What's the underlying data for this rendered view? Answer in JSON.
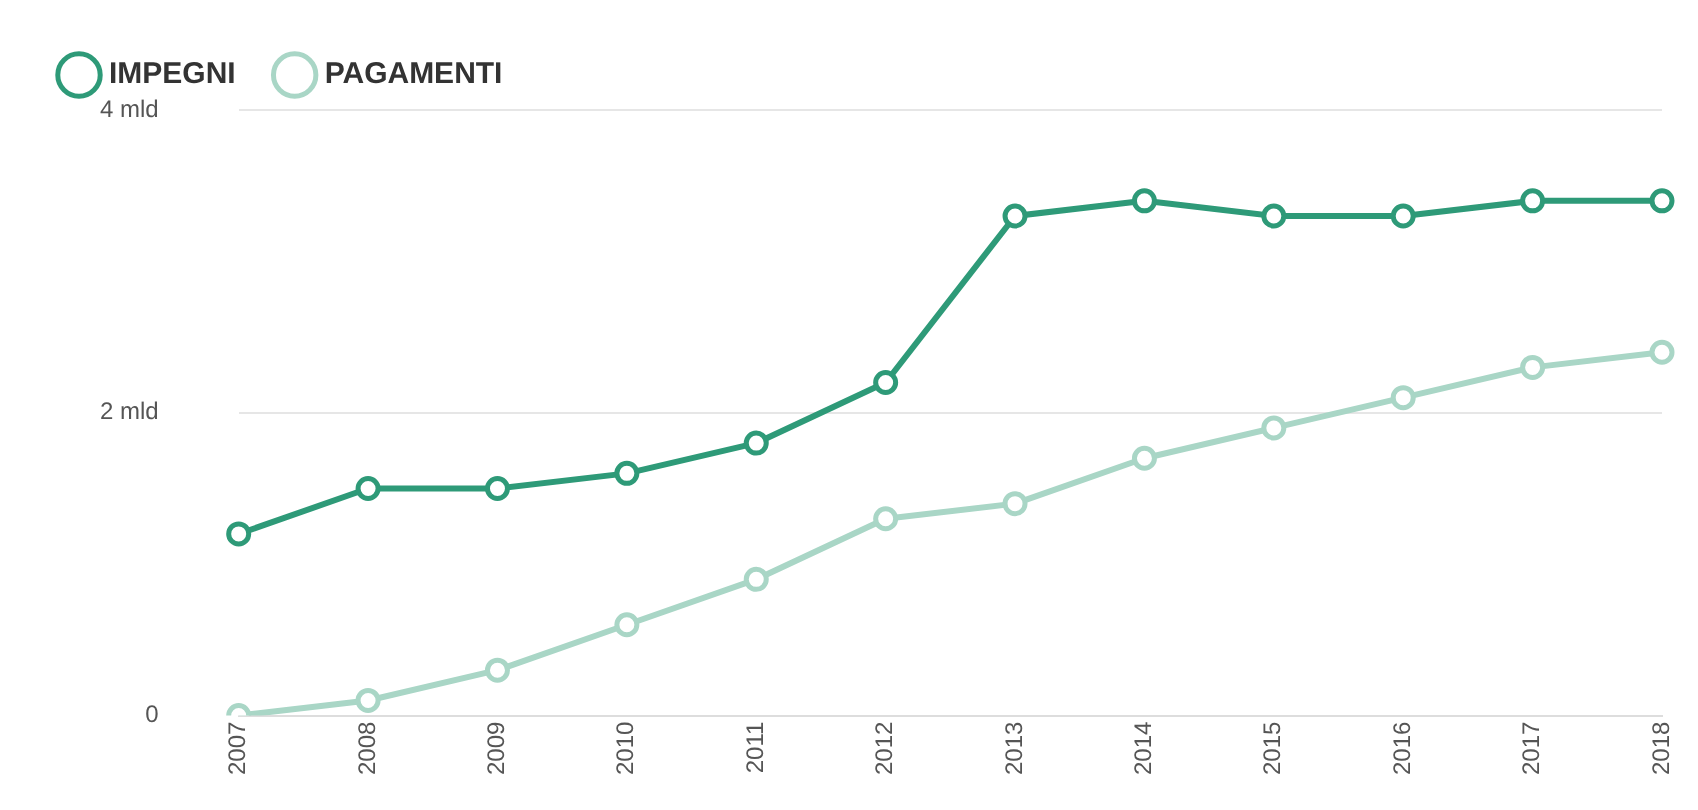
{
  "chart_data": {
    "type": "line",
    "categories": [
      "2007",
      "2008",
      "2009",
      "2010",
      "2011",
      "2012",
      "2013",
      "2014",
      "2015",
      "2016",
      "2017",
      "2018"
    ],
    "series": [
      {
        "name": "IMPEGNI",
        "color": "#2e9a78",
        "values": [
          1.2,
          1.5,
          1.5,
          1.6,
          1.8,
          2.2,
          3.3,
          3.4,
          3.3,
          3.3,
          3.4,
          3.4
        ]
      },
      {
        "name": "PAGAMENTI",
        "color": "#a9d6c6",
        "values": [
          0.0,
          0.1,
          0.3,
          0.6,
          0.9,
          1.3,
          1.4,
          1.7,
          1.9,
          2.1,
          2.3,
          2.4
        ]
      }
    ],
    "ylim": [
      0,
      4
    ],
    "yticks": [
      0,
      {
        "value": 2,
        "label": "2 mld"
      },
      {
        "value": 4,
        "label": "4 mld"
      }
    ],
    "grid": "y",
    "legend": "top left",
    "marker": "circle",
    "line_style": "solid"
  }
}
